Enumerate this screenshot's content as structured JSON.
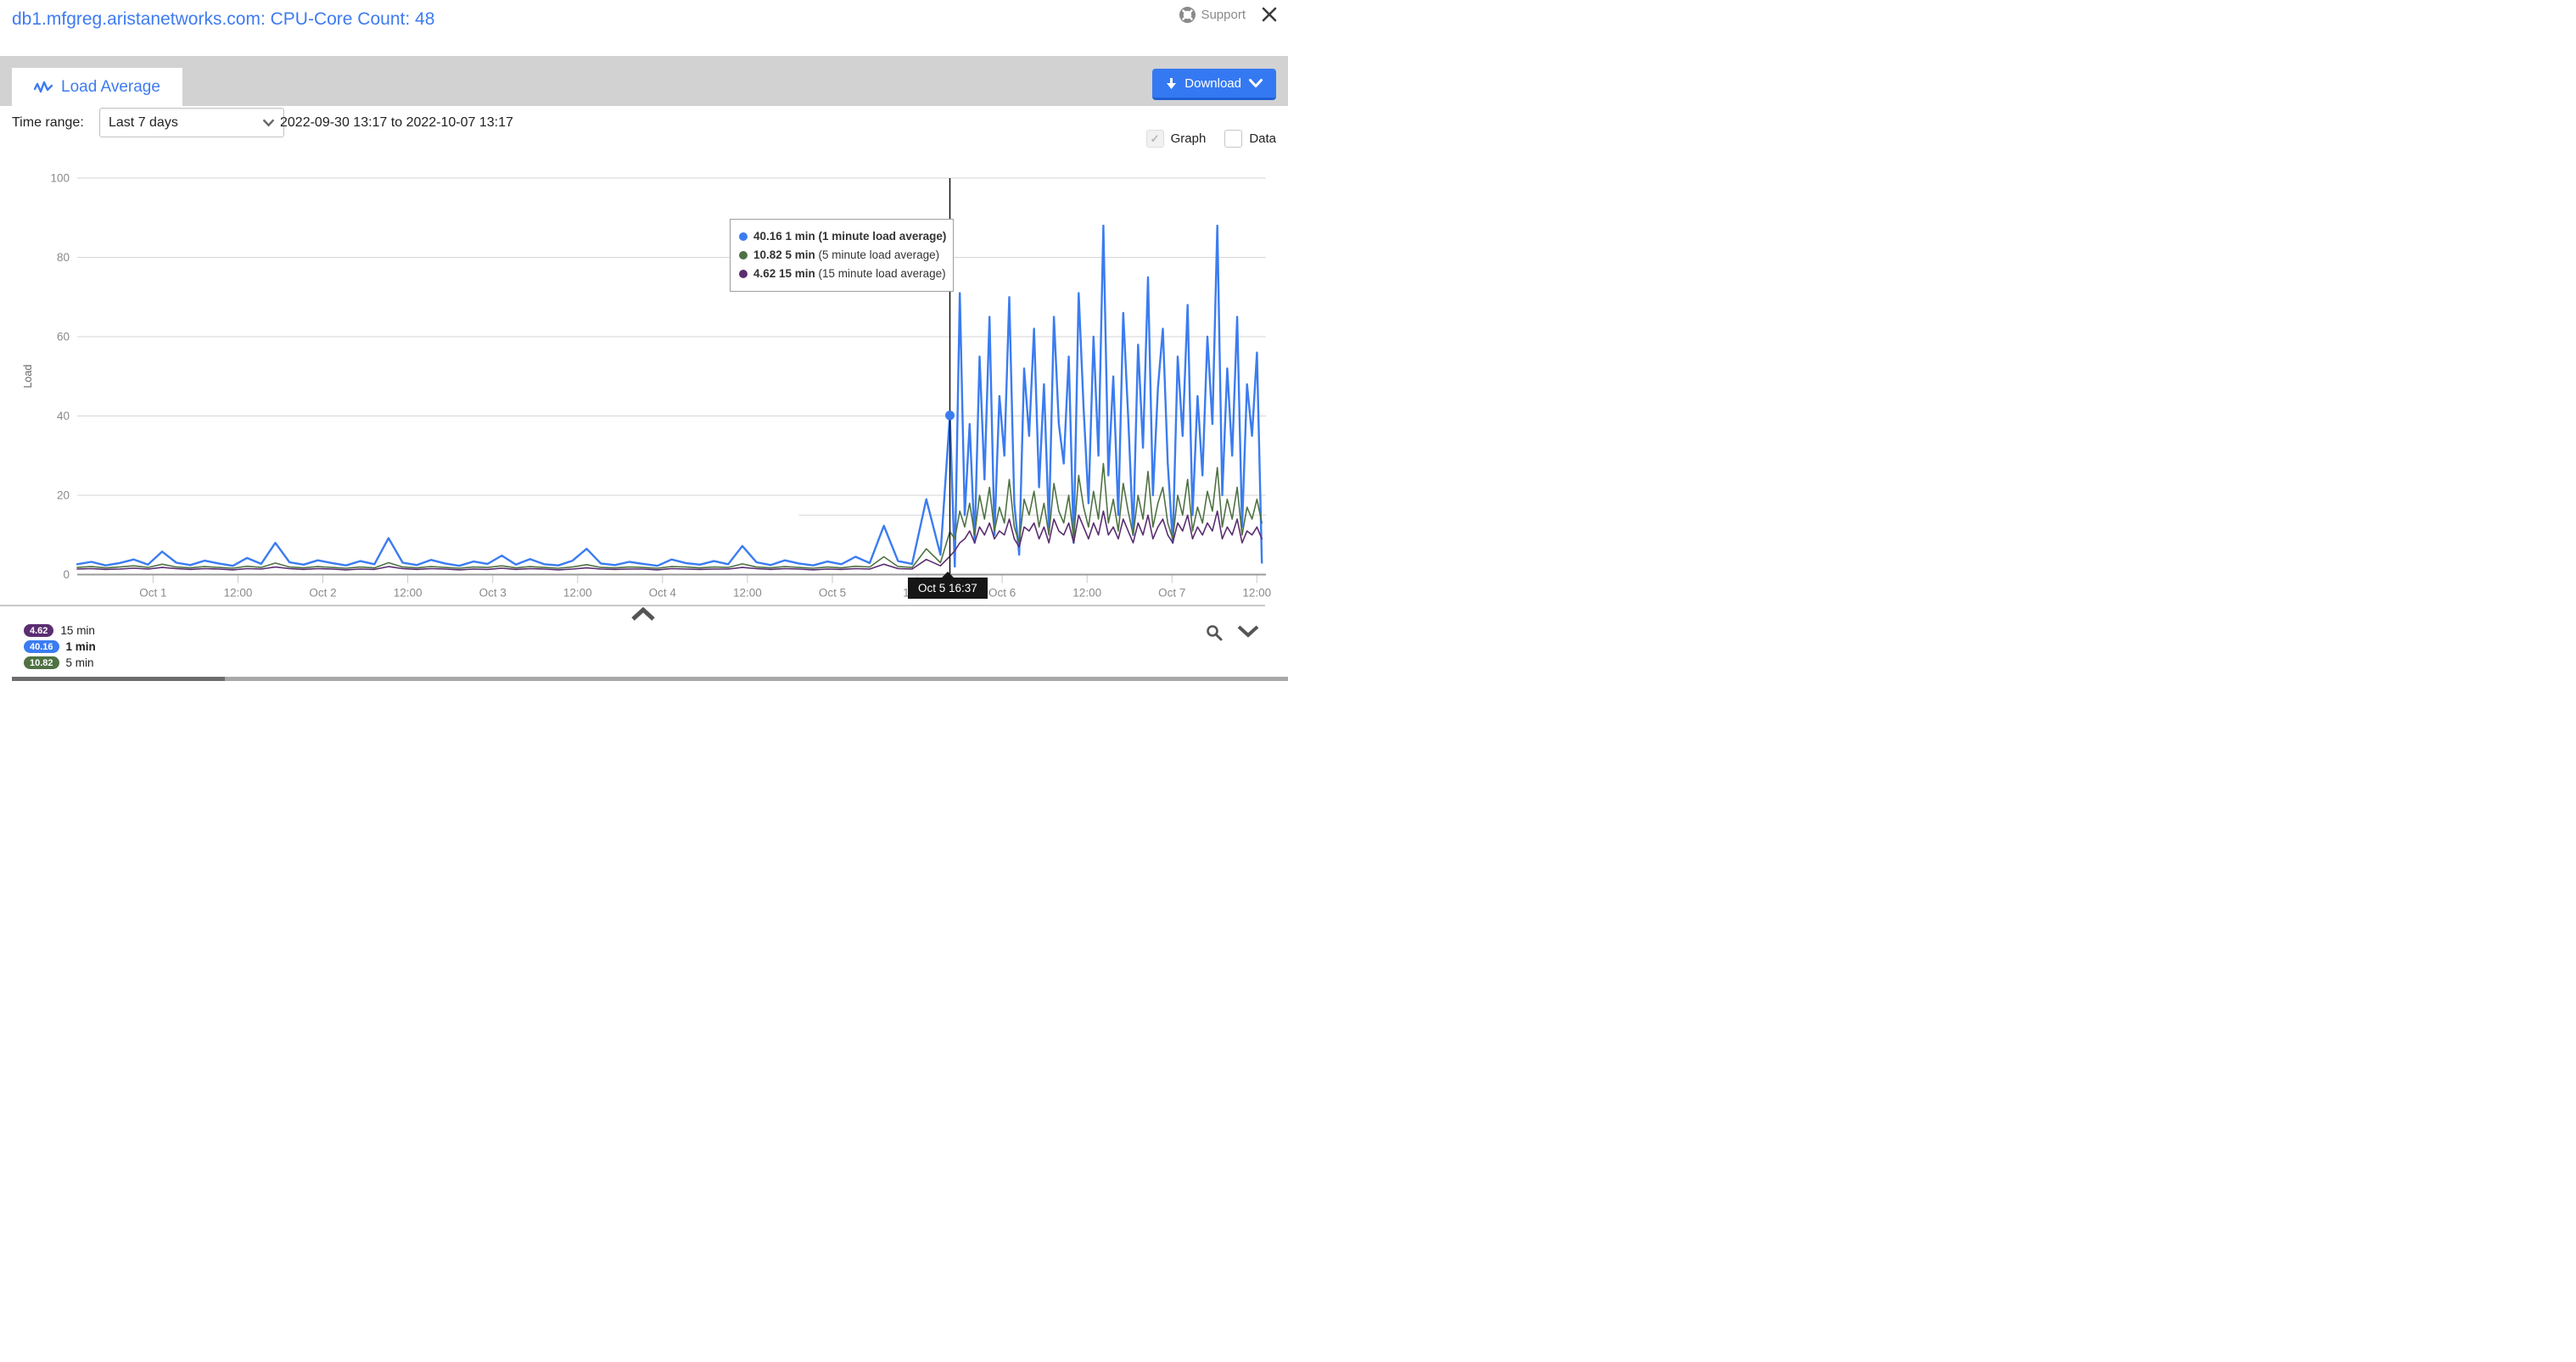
{
  "header": {
    "title": "db1.mfgreg.aristanetworks.com: CPU-Core Count: 48",
    "support_label": "Support"
  },
  "tab": {
    "label": "Load Average"
  },
  "toolbar": {
    "download_label": "Download"
  },
  "controls": {
    "time_range_label": "Time range:",
    "time_range_value": "Last 7 days",
    "date_range": "2022-09-30 13:17 to 2022-10-07 13:17",
    "graph_label": "Graph",
    "graph_checked": true,
    "data_label": "Data",
    "data_checked": false
  },
  "colors": {
    "accent_blue": "#3e7bf0",
    "series_1min": "#3b7cf0",
    "series_5min": "#4f7243",
    "series_15min": "#5b2d71",
    "grid": "#d6d6d6",
    "axis_text": "#8a8a8a"
  },
  "tooltip": {
    "rows": [
      {
        "value": "40.16",
        "name": "1 min",
        "desc": "(1 minute load average)",
        "color": "#3b7cf0",
        "highlight": true
      },
      {
        "value": "10.82",
        "name": "5 min",
        "desc": "(5 minute load average)",
        "color": "#4f7243",
        "highlight": false
      },
      {
        "value": "4.62",
        "name": "15 min",
        "desc": "(15 minute load average)",
        "color": "#5b2d71",
        "highlight": false
      }
    ]
  },
  "legend": {
    "items": [
      {
        "value": "4.62",
        "label": "15 min",
        "color": "#5b2d71",
        "highlight": false
      },
      {
        "value": "40.16",
        "label": "1 min",
        "color": "#3b7cf0",
        "highlight": true
      },
      {
        "value": "10.82",
        "label": "5 min",
        "color": "#4f7243",
        "highlight": false
      }
    ]
  },
  "chart_data": {
    "type": "line",
    "ylabel": "Load",
    "ylim": [
      0,
      100
    ],
    "y_ticks": [
      0,
      20,
      40,
      60,
      80,
      100
    ],
    "x_start": "2022-09-30 13:17",
    "x_end": "2022-10-07 13:17",
    "x_range_hours": 168,
    "grid": true,
    "x_ticks": [
      {
        "t": 10.72,
        "label": "Oct 1"
      },
      {
        "t": 22.72,
        "label": "12:00"
      },
      {
        "t": 34.72,
        "label": "Oct 2"
      },
      {
        "t": 46.72,
        "label": "12:00"
      },
      {
        "t": 58.72,
        "label": "Oct 3"
      },
      {
        "t": 70.72,
        "label": "12:00"
      },
      {
        "t": 82.72,
        "label": "Oct 4"
      },
      {
        "t": 94.72,
        "label": "12:00"
      },
      {
        "t": 106.72,
        "label": "Oct 5"
      },
      {
        "t": 118.72,
        "label": "12:00"
      },
      {
        "t": 130.72,
        "label": "Oct 6"
      },
      {
        "t": 142.72,
        "label": "12:00"
      },
      {
        "t": 154.72,
        "label": "Oct 7"
      },
      {
        "t": 166.72,
        "label": "12:00"
      }
    ],
    "crosshair": {
      "t": 123.33,
      "label": "Oct 5 16:37",
      "point_series": "1 min",
      "point_value": 40.16
    },
    "aux_line": {
      "value": 15,
      "t_from": 102,
      "t_to": 168
    },
    "series": [
      {
        "name": "1 min",
        "desc": "1 minute load average",
        "color": "#3b7cf0",
        "width": 2.4,
        "segments": [
          {
            "t0": 0,
            "dt": 2,
            "values": [
              2.6,
              3.2,
              2.3,
              2.9,
              3.8,
              2.5,
              5.8,
              3.0,
              2.4,
              3.5,
              2.8,
              2.2,
              4.2,
              2.7,
              8.0,
              3.1,
              2.5,
              3.6,
              2.9,
              2.3,
              3.4,
              2.6,
              9.2,
              3.0,
              2.4,
              3.7,
              2.8,
              2.2,
              3.3,
              2.7,
              4.8,
              2.5,
              3.9,
              2.6,
              2.3,
              3.5,
              6.5,
              2.8,
              2.4,
              3.2,
              2.7,
              2.2,
              3.8,
              2.9,
              2.5,
              3.4,
              2.6,
              7.2,
              3.1,
              2.4,
              3.6,
              2.8,
              2.3,
              3.3,
              2.6,
              4.5,
              2.9,
              12.3,
              3.4,
              2.7,
              19.0,
              5.0
            ]
          },
          {
            "t0": 123.33,
            "dt": 0.7,
            "values": [
              40.16,
              2,
              71,
              15,
              38,
              8,
              55,
              24,
              65,
              10,
              45,
              30,
              70,
              18,
              5,
              52,
              35,
              62,
              22,
              48,
              12,
              65,
              38,
              28,
              55,
              8,
              71,
              42,
              18,
              60,
              30,
              88,
              25,
              50,
              15,
              66,
              40,
              10,
              58,
              32,
              75,
              20,
              47,
              62,
              28,
              8,
              55,
              35,
              68,
              15,
              45,
              25,
              60,
              38,
              88,
              20,
              52,
              30,
              65,
              12,
              48,
              35,
              56,
              3
            ]
          }
        ]
      },
      {
        "name": "5 min",
        "desc": "5 minute load average",
        "color": "#4f7243",
        "width": 1.6,
        "segments": [
          {
            "t0": 0,
            "dt": 2,
            "values": [
              1.8,
              2.0,
              1.7,
              1.9,
              2.2,
              1.8,
              2.6,
              1.9,
              1.7,
              2.0,
              1.8,
              1.6,
              2.1,
              1.8,
              2.9,
              1.9,
              1.7,
              2.0,
              1.8,
              1.6,
              1.9,
              1.7,
              3.0,
              1.9,
              1.7,
              2.0,
              1.8,
              1.6,
              1.9,
              1.8,
              2.2,
              1.7,
              2.0,
              1.8,
              1.6,
              1.9,
              2.5,
              1.8,
              1.7,
              1.9,
              1.8,
              1.6,
              2.0,
              1.9,
              1.7,
              1.9,
              1.8,
              2.7,
              1.9,
              1.7,
              2.0,
              1.8,
              1.6,
              1.9,
              1.7,
              2.1,
              1.9,
              4.5,
              2.0,
              1.8,
              6.5,
              3.0
            ]
          },
          {
            "t0": 123.33,
            "dt": 0.7,
            "values": [
              10.82,
              9,
              16,
              12,
              18,
              10,
              20,
              14,
              22,
              11,
              17,
              13,
              24,
              12,
              8,
              19,
              15,
              21,
              12,
              18,
              10,
              23,
              16,
              13,
              20,
              9,
              25,
              17,
              12,
              21,
              14,
              28,
              13,
              19,
              11,
              23,
              16,
              10,
              20,
              14,
              26,
              12,
              18,
              22,
              13,
              9,
              20,
              15,
              24,
              11,
              17,
              13,
              21,
              16,
              27,
              12,
              19,
              14,
              22,
              10,
              17,
              14,
              19,
              13
            ]
          }
        ]
      },
      {
        "name": "15 min",
        "desc": "15 minute load average",
        "color": "#5b2d71",
        "width": 1.6,
        "segments": [
          {
            "t0": 0,
            "dt": 2,
            "values": [
              1.4,
              1.5,
              1.3,
              1.4,
              1.6,
              1.4,
              1.8,
              1.5,
              1.3,
              1.5,
              1.4,
              1.2,
              1.5,
              1.4,
              1.9,
              1.5,
              1.3,
              1.5,
              1.4,
              1.2,
              1.4,
              1.3,
              2.0,
              1.5,
              1.3,
              1.5,
              1.4,
              1.2,
              1.4,
              1.3,
              1.6,
              1.3,
              1.5,
              1.4,
              1.2,
              1.4,
              1.7,
              1.4,
              1.3,
              1.4,
              1.4,
              1.2,
              1.5,
              1.4,
              1.3,
              1.4,
              1.4,
              1.8,
              1.5,
              1.3,
              1.5,
              1.4,
              1.2,
              1.4,
              1.3,
              1.5,
              1.4,
              2.6,
              1.5,
              1.4,
              3.8,
              2.2
            ]
          },
          {
            "t0": 123.33,
            "dt": 0.7,
            "values": [
              4.62,
              6,
              8,
              9,
              11,
              8,
              12,
              10,
              13,
              9,
              11,
              10,
              14,
              9,
              7,
              12,
              11,
              13,
              9,
              12,
              8,
              14,
              11,
              10,
              13,
              8,
              15,
              12,
              9,
              13,
              10,
              16,
              10,
              12,
              9,
              14,
              11,
              8,
              13,
              10,
              15,
              9,
              12,
              14,
              10,
              8,
              13,
              11,
              15,
              9,
              12,
              10,
              13,
              11,
              16,
              9,
              12,
              10,
              14,
              8,
              11,
              10,
              12,
              9
            ]
          }
        ]
      }
    ]
  }
}
